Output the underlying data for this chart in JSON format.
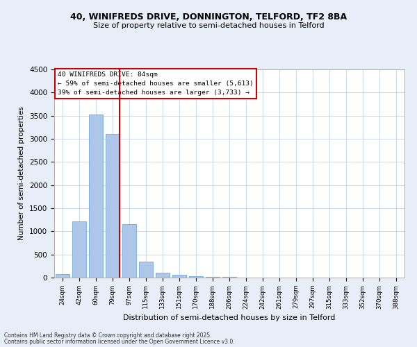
{
  "title_line1": "40, WINIFREDS DRIVE, DONNINGTON, TELFORD, TF2 8BA",
  "title_line2": "Size of property relative to semi-detached houses in Telford",
  "xlabel": "Distribution of semi-detached houses by size in Telford",
  "ylabel": "Number of semi-detached properties",
  "categories": [
    "24sqm",
    "42sqm",
    "60sqm",
    "79sqm",
    "97sqm",
    "115sqm",
    "133sqm",
    "151sqm",
    "170sqm",
    "188sqm",
    "206sqm",
    "224sqm",
    "242sqm",
    "261sqm",
    "279sqm",
    "297sqm",
    "315sqm",
    "333sqm",
    "352sqm",
    "370sqm",
    "388sqm"
  ],
  "values": [
    75,
    1215,
    3520,
    3110,
    1160,
    350,
    105,
    55,
    35,
    20,
    10,
    5,
    5,
    0,
    0,
    0,
    0,
    0,
    0,
    0,
    0
  ],
  "bar_color": "#aec6e8",
  "bar_edgecolor": "#5a9fd4",
  "vline_x": 3,
  "vline_color": "#cc0000",
  "annotation_title": "40 WINIFREDS DRIVE: 84sqm",
  "annotation_line1": "← 59% of semi-detached houses are smaller (5,613)",
  "annotation_line2": "39% of semi-detached houses are larger (3,733) →",
  "annotation_box_color": "#cc0000",
  "ylim": [
    0,
    4500
  ],
  "yticks": [
    0,
    500,
    1000,
    1500,
    2000,
    2500,
    3000,
    3500,
    4000,
    4500
  ],
  "footer_line1": "Contains HM Land Registry data © Crown copyright and database right 2025.",
  "footer_line2": "Contains public sector information licensed under the Open Government Licence v3.0.",
  "background_color": "#e8eef8",
  "plot_background": "#ffffff",
  "grid_color": "#c8d8f0"
}
